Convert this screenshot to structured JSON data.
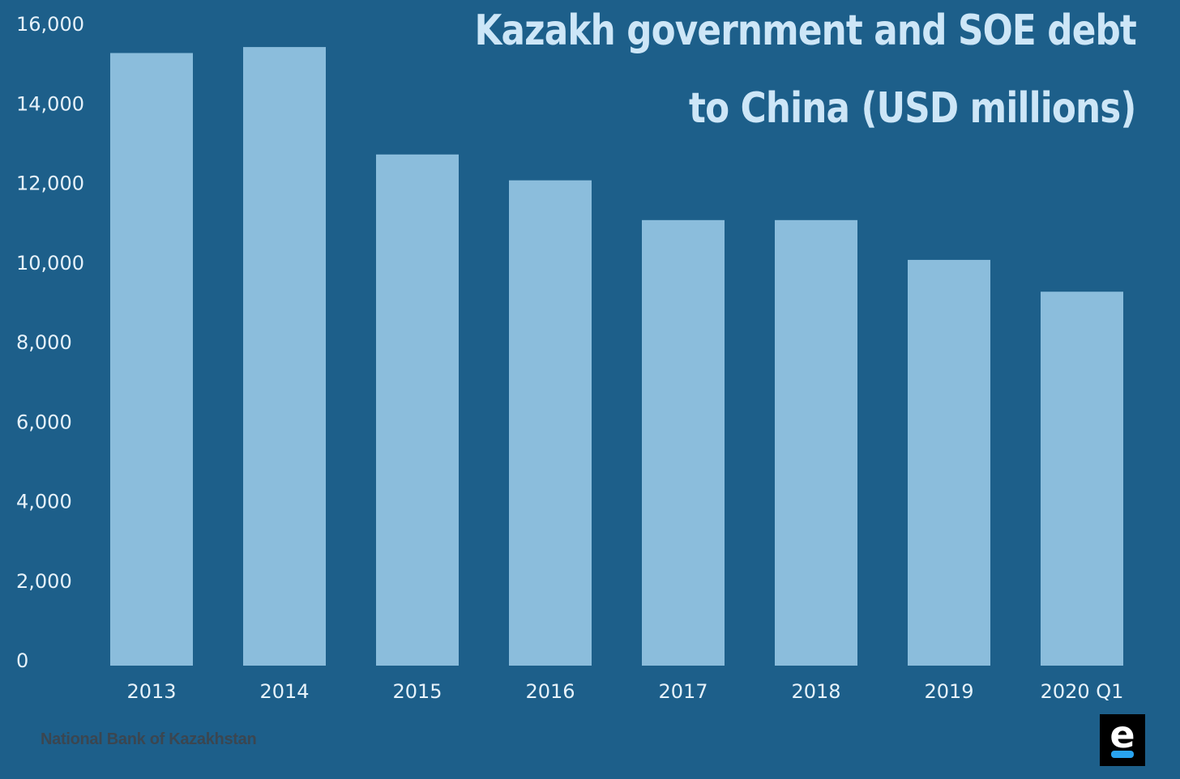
{
  "chart_data": {
    "type": "bar",
    "title_lines": [
      "Kazakh government and SOE debt",
      "to China (USD millions)"
    ],
    "categories": [
      "2013",
      "2014",
      "2015",
      "2016",
      "2017",
      "2018",
      "2019",
      "2020 Q1"
    ],
    "values": [
      15400,
      15550,
      12850,
      12200,
      11200,
      11200,
      10200,
      9400
    ],
    "ylim": [
      0,
      16000
    ],
    "yticks": [
      0,
      2000,
      4000,
      6000,
      8000,
      10000,
      12000,
      14000,
      16000
    ],
    "ytick_labels": [
      "0",
      "2,000",
      "4,000",
      "6,000",
      "8,000",
      "10,000",
      "12,000",
      "14,000",
      "16,000"
    ],
    "grid": false,
    "legend": "none"
  },
  "source": "National Bank of Kazakhstan",
  "logo": {
    "icon": "e-logo-icon",
    "letter": "e"
  },
  "colors": {
    "background": "#1d5f8a",
    "bar": "#8bbddc",
    "tick_text": "#e6f2fa",
    "title": "#cde6f7",
    "source_text": "#3b4650",
    "logo_bg": "#000000",
    "logo_accent": "#29a3ef"
  }
}
